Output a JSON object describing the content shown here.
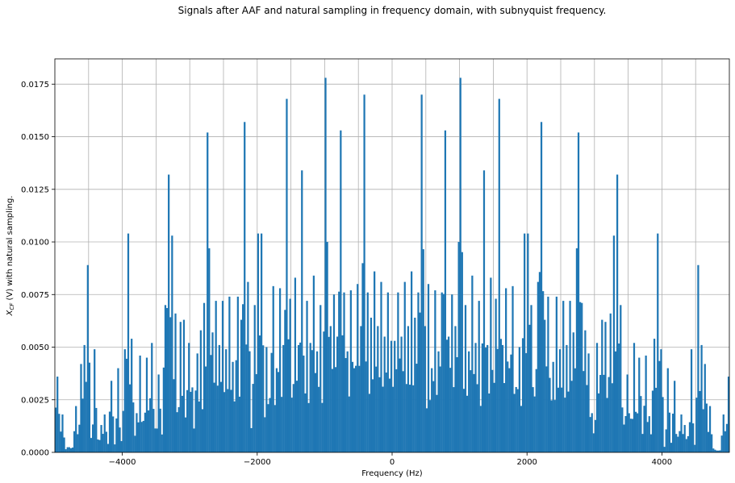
{
  "chart_data": {
    "type": "bar",
    "title": "Signals after AAF and natural sampling in frequency domain, with subnyquist frequency.",
    "xlabel": "Frequency (Hz)",
    "ylabel_main": "X",
    "ylabel_sub": "CF",
    "ylabel_rest": " (V) with natural sampling.",
    "xlim": [
      -5000,
      5000
    ],
    "ylim": [
      0,
      0.0187
    ],
    "grid": true,
    "bar_color": "#1f77b4",
    "bin_width_hz": 25,
    "xticks": [
      -4000,
      -2000,
      0,
      2000,
      4000
    ],
    "xtick_labels": [
      "−4000",
      "−2000",
      "0",
      "2000",
      "4000"
    ],
    "yticks": [
      0,
      0.0025,
      0.005,
      0.0075,
      0.01,
      0.0125,
      0.015,
      0.0175
    ],
    "ytick_labels": [
      "0.0000",
      "0.0025",
      "0.0050",
      "0.0075",
      "0.0100",
      "0.0125",
      "0.0150",
      "0.0175"
    ],
    "peaks_positive_hz": [
      [
        25,
        0.0053
      ],
      [
        75,
        0.0076
      ],
      [
        125,
        0.0055
      ],
      [
        175,
        0.0081
      ],
      [
        225,
        0.006
      ],
      [
        275,
        0.0086
      ],
      [
        325,
        0.0064
      ],
      [
        375,
        0.0076
      ],
      [
        425,
        0.017
      ],
      [
        475,
        0.006
      ],
      [
        525,
        0.008
      ],
      [
        575,
        0.004
      ],
      [
        625,
        0.0077
      ],
      [
        675,
        0.0048
      ],
      [
        725,
        0.0076
      ],
      [
        775,
        0.0153
      ],
      [
        825,
        0.0055
      ],
      [
        875,
        0.0075
      ],
      [
        925,
        0.006
      ],
      [
        975,
        0.01
      ],
      [
        1000,
        0.0178
      ],
      [
        1025,
        0.0052
      ],
      [
        1075,
        0.007
      ],
      [
        1125,
        0.0048
      ],
      [
        1175,
        0.0084
      ],
      [
        1225,
        0.0052
      ],
      [
        1275,
        0.0072
      ],
      [
        1325,
        0.0046
      ],
      [
        1350,
        0.0134
      ],
      [
        1400,
        0.0051
      ],
      [
        1450,
        0.0083
      ],
      [
        1525,
        0.0073
      ],
      [
        1575,
        0.0168
      ],
      [
        1625,
        0.0051
      ],
      [
        1675,
        0.0078
      ],
      [
        1725,
        0.004
      ],
      [
        1775,
        0.0079
      ],
      [
        1825,
        0.0025
      ],
      [
        1875,
        0.005
      ],
      [
        1950,
        0.0104
      ],
      [
        2000,
        0.0104
      ],
      [
        2050,
        0.007
      ],
      [
        2150,
        0.0081
      ],
      [
        2200,
        0.0157
      ],
      [
        2250,
        0.0063
      ],
      [
        2300,
        0.0074
      ],
      [
        2375,
        0.0043
      ],
      [
        2425,
        0.0074
      ],
      [
        2475,
        0.0049
      ],
      [
        2525,
        0.0072
      ],
      [
        2575,
        0.0051
      ],
      [
        2625,
        0.0072
      ],
      [
        2675,
        0.0057
      ],
      [
        2725,
        0.0097
      ],
      [
        2750,
        0.0152
      ],
      [
        2800,
        0.0071
      ],
      [
        2850,
        0.0058
      ],
      [
        2900,
        0.0047
      ],
      [
        3025,
        0.0052
      ],
      [
        3100,
        0.0063
      ],
      [
        3150,
        0.0062
      ],
      [
        3225,
        0.0066
      ],
      [
        3275,
        0.0103
      ],
      [
        3325,
        0.0132
      ],
      [
        3375,
        0.007
      ],
      [
        3475,
        0.0037
      ],
      [
        3575,
        0.0052
      ],
      [
        3650,
        0.0045
      ],
      [
        3750,
        0.0046
      ],
      [
        3875,
        0.0054
      ],
      [
        3925,
        0.0104
      ],
      [
        3975,
        0.0049
      ],
      [
        4075,
        0.004
      ],
      [
        4175,
        0.0034
      ],
      [
        4275,
        0.0018
      ],
      [
        4325,
        0.0013
      ],
      [
        4425,
        0.0049
      ],
      [
        4525,
        0.0089
      ],
      [
        4575,
        0.0051
      ],
      [
        4625,
        0.0042
      ],
      [
        4700,
        0.0022
      ],
      [
        4900,
        0.0018
      ],
      [
        4975,
        0.0036
      ]
    ]
  }
}
